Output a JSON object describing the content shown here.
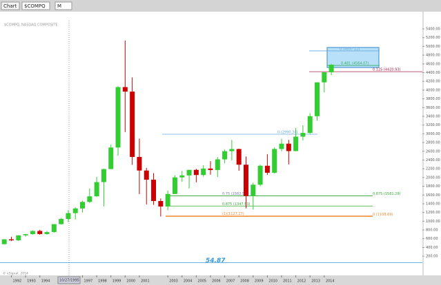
{
  "toolbar": {
    "window": "Chart",
    "symbol": "$COMPQ",
    "interval": "M"
  },
  "chart_data": {
    "type": "candlestick",
    "subtitle": "$COMPQ, NASDAQ COMPOSITE",
    "footer": "© eSignal, 2014",
    "crosshair_label": "10/27/1995",
    "x": [
      1991.5,
      1992.0,
      1992.5,
      1993.0,
      1993.5,
      1994.0,
      1994.5,
      1995.0,
      1995.5,
      1996.0,
      1996.5,
      1997.0,
      1997.5,
      1998.0,
      1998.5,
      1999.0,
      1999.5,
      2000.0,
      2000.5,
      2001.0,
      2001.5,
      2002.0,
      2002.5,
      2003.0,
      2003.5,
      2004.0,
      2004.5,
      2005.0,
      2005.5,
      2006.0,
      2006.5,
      2007.0,
      2007.5,
      2008.0,
      2008.5,
      2009.0,
      2009.5,
      2010.0,
      2010.5,
      2011.0,
      2011.5,
      2012.0,
      2012.5,
      2013.0,
      2013.5,
      2014.0,
      2014.5
    ],
    "open": [
      475,
      586,
      563,
      677,
      704,
      777,
      706,
      752,
      933,
      1052,
      1185,
      1291,
      1442,
      1570,
      1895,
      2193,
      2686,
      4069,
      3966,
      2470,
      2160,
      1950,
      1463,
      1336,
      1623,
      2003,
      2048,
      2175,
      2057,
      2205,
      2172,
      2415,
      2603,
      2652,
      2293,
      1577,
      1835,
      2269,
      2109,
      2653,
      2774,
      2605,
      2935,
      3020,
      3403,
      4177,
      4408
    ],
    "high": [
      590,
      645,
      677,
      712,
      790,
      804,
      780,
      935,
      1075,
      1250,
      1320,
      1470,
      1750,
      2015,
      2200,
      2750,
      4090,
      5133,
      4290,
      2890,
      2220,
      2100,
      1520,
      1700,
      2050,
      2150,
      2180,
      2200,
      2280,
      2375,
      2470,
      2640,
      2861,
      2660,
      2480,
      1880,
      2295,
      2535,
      2690,
      2887,
      2860,
      3135,
      3196,
      3470,
      4180,
      4400,
      4600
    ],
    "low": [
      470,
      545,
      547,
      645,
      695,
      690,
      690,
      740,
      925,
      980,
      1040,
      1200,
      1420,
      1560,
      1340,
      2190,
      2500,
      3040,
      2290,
      1620,
      1387,
      1375,
      1108,
      1253,
      1620,
      1900,
      1750,
      1890,
      2020,
      2065,
      2012,
      2330,
      2390,
      2155,
      1295,
      1265,
      1800,
      2060,
      2090,
      2600,
      2300,
      2600,
      2850,
      3000,
      3300,
      3950,
      4340
    ],
    "close": [
      586,
      563,
      677,
      704,
      777,
      706,
      752,
      933,
      1052,
      1185,
      1291,
      1442,
      1570,
      1895,
      2193,
      2686,
      4069,
      3966,
      2470,
      2160,
      1950,
      1463,
      1336,
      1623,
      2003,
      2048,
      2175,
      2057,
      2205,
      2172,
      2415,
      2603,
      2652,
      2293,
      1577,
      1835,
      2269,
      2109,
      2653,
      2774,
      2605,
      2935,
      3020,
      3403,
      4177,
      4408,
      4580
    ],
    "up_color": "#33cc33",
    "down_color": "#cc0000",
    "xlim": [
      1991.2,
      2020.9
    ],
    "xticks": [
      1992,
      1993,
      1994,
      1997,
      1998,
      1999,
      2000,
      2001,
      2003,
      2004,
      2005,
      2006,
      2007,
      2008,
      2009,
      2010,
      2011,
      2012,
      2013,
      2014
    ],
    "ylim": [
      -160,
      5510
    ],
    "yticks": [
      {
        "value": 200,
        "label": "200.00"
      },
      {
        "value": 400,
        "label": "400.00"
      },
      {
        "value": 600,
        "label": "600.00"
      },
      {
        "value": 800,
        "label": "800.00"
      },
      {
        "value": 1000,
        "label": "1000.00"
      },
      {
        "value": 1200,
        "label": "1200.00"
      },
      {
        "value": 1400,
        "label": "1400.00"
      },
      {
        "value": 1600,
        "label": "1600.00"
      },
      {
        "value": 1800,
        "label": "1800.00"
      },
      {
        "value": 2000,
        "label": "2000.00"
      },
      {
        "value": 2200,
        "label": "2200.00"
      },
      {
        "value": 2400,
        "label": "2400.00"
      },
      {
        "value": 2600,
        "label": "2600.00"
      },
      {
        "value": 2800,
        "label": "2800.00"
      },
      {
        "value": 3000,
        "label": "3000.00"
      },
      {
        "value": 3200,
        "label": "3200.00"
      },
      {
        "value": 3400,
        "label": "3400.00"
      },
      {
        "value": 3600,
        "label": "3600.00"
      },
      {
        "value": 3800,
        "label": "3800.00"
      },
      {
        "value": 4000,
        "label": "4000.00"
      },
      {
        "value": 4200,
        "label": "4200.00"
      },
      {
        "value": 4400,
        "label": "4400.00"
      },
      {
        "value": 4600,
        "label": "4600.00"
      },
      {
        "value": 4800,
        "label": "4800.00"
      },
      {
        "value": 5000,
        "label": "5000.00"
      },
      {
        "value": 5200,
        "label": "5200.00"
      },
      {
        "value": 5400,
        "label": "5400.00"
      }
    ],
    "levels": [
      {
        "label": "0 (4897.12)",
        "value": 4897.12,
        "color": "#66aadd"
      },
      {
        "label": "0.481 (4564.07)",
        "value": 4564.07,
        "color": "#33aa66"
      },
      {
        "label": "0.125 (4420.93)",
        "value": 4420.93,
        "color": "#aa2244"
      },
      {
        "label": "0 (2990.34)",
        "value": 2990.34,
        "color": "#66aadd"
      },
      {
        "label": "0.75 (1582.54)",
        "value": 1582.54,
        "color": "#7777aa"
      },
      {
        "label": "0.875 (1581.29)",
        "value": 1581.29,
        "color": "#33aa33"
      },
      {
        "label": "0.875 (1347.53)",
        "value": 1347.53,
        "color": "#33aa33"
      },
      {
        "label": "(1)(1127.27)",
        "value": 1127.27,
        "color": "#ee8833"
      },
      {
        "label": "0 (1108.69)",
        "value": 1108.69,
        "color": "#ee8833"
      }
    ],
    "base_line": {
      "label": "54.87",
      "value": 54.87,
      "color": "#3399dd"
    }
  }
}
